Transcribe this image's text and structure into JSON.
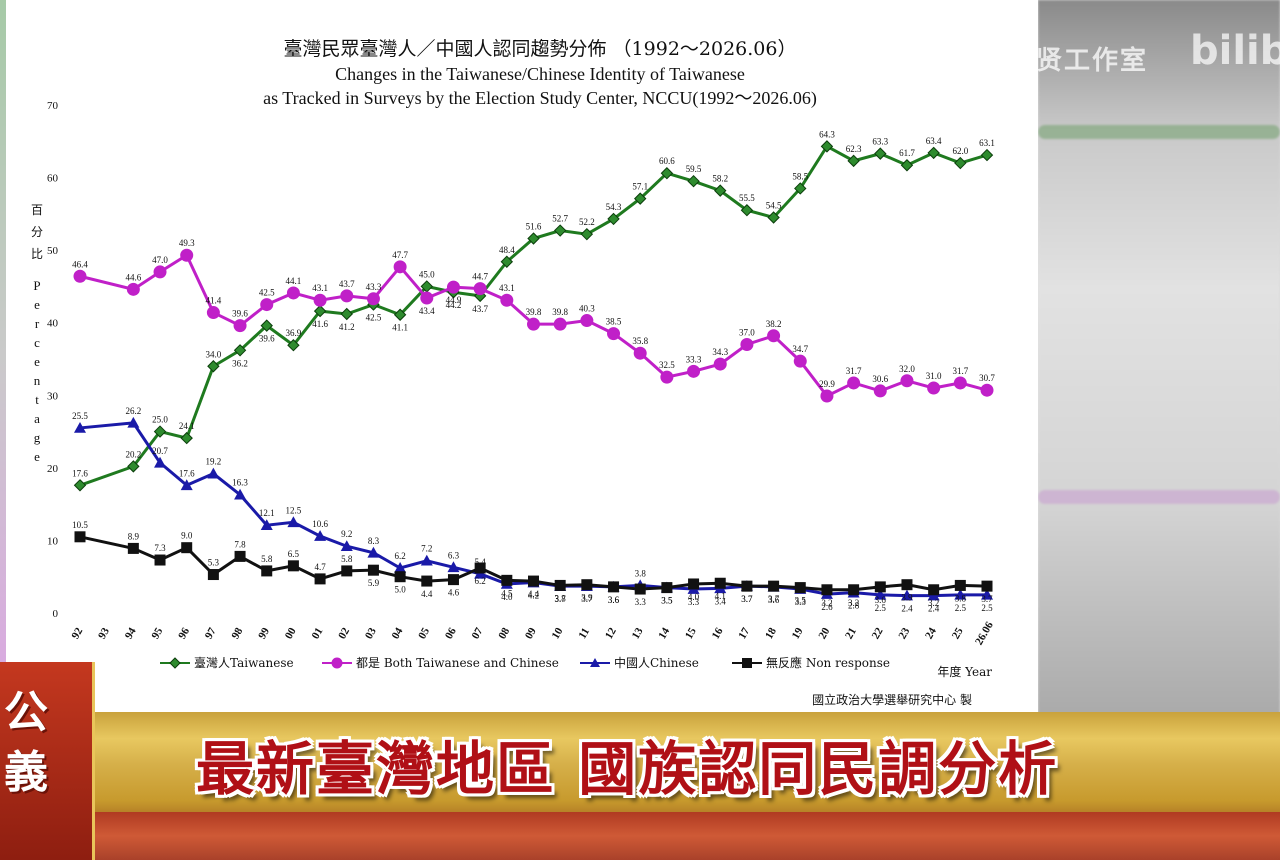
{
  "watermark": {
    "text": "蒂智贤工作室",
    "logo_text": "bilib"
  },
  "broadcast": {
    "headline": "最新臺灣地區  國族認同民調分析",
    "logo_top": "公",
    "logo_bottom": "義"
  },
  "chart_data": {
    "type": "line",
    "title": "臺灣民眾臺灣人／中國人認同趨勢分佈 （1992～2026.06）",
    "subtitle_line1": "Changes in the Taiwanese/Chinese Identity of Taiwanese",
    "subtitle_line2": "as Tracked in Surveys by the Election Study Center, NCCU(1992～2026.06)",
    "ylabel_zh": [
      "百",
      "分",
      "比"
    ],
    "ylabel_en": [
      "P",
      "e",
      "r",
      "c",
      "e",
      "n",
      "t",
      "a",
      "g",
      "e"
    ],
    "xlabel": "年度 Year",
    "source": "國立政治大學選舉研究中心 製",
    "ylim": [
      0,
      70
    ],
    "yticks": [
      "0",
      "10",
      "20",
      "30",
      "40",
      "50",
      "60",
      "70"
    ],
    "categories": [
      "92",
      "93",
      "94",
      "95",
      "96",
      "97",
      "98",
      "99",
      "00",
      "01",
      "02",
      "03",
      "04",
      "05",
      "06",
      "07",
      "08",
      "09",
      "10",
      "11",
      "12",
      "13",
      "14",
      "15",
      "16",
      "17",
      "18",
      "19",
      "20",
      "21",
      "22",
      "23",
      "24",
      "25",
      "26.06"
    ],
    "grid": false,
    "legend_position": "bottom",
    "series": [
      {
        "name": "臺灣人Taiwanese",
        "color": "#1f7a1f",
        "marker": "diamond",
        "points": [
          {
            "x": "92",
            "y": 17.6,
            "label": "17.6"
          },
          {
            "x": "94",
            "y": 20.2,
            "label": "20.2"
          },
          {
            "x": "95",
            "y": 25.0,
            "label": "25.0"
          },
          {
            "x": "96",
            "y": 24.1,
            "label": "24.1"
          },
          {
            "x": "97",
            "y": 34.0,
            "label": "34.0"
          },
          {
            "x": "98",
            "y": 36.2,
            "label": "36.2"
          },
          {
            "x": "99",
            "y": 39.6,
            "label": "39.6"
          },
          {
            "x": "00",
            "y": 36.9,
            "label": "36.9"
          },
          {
            "x": "01",
            "y": 41.6,
            "label": "41.6"
          },
          {
            "x": "02",
            "y": 41.2,
            "label": "41.2"
          },
          {
            "x": "03",
            "y": 42.5,
            "label": "42.5"
          },
          {
            "x": "04",
            "y": 41.1,
            "label": "41.1"
          },
          {
            "x": "05",
            "y": 45.0,
            "label": "45.0"
          },
          {
            "x": "06",
            "y": 44.2,
            "label": "44.2"
          },
          {
            "x": "07",
            "y": 43.7,
            "label": "43.7"
          },
          {
            "x": "08",
            "y": 48.4,
            "label": "48.4"
          },
          {
            "x": "09",
            "y": 51.6,
            "label": "51.6"
          },
          {
            "x": "10",
            "y": 52.7,
            "label": "52.7"
          },
          {
            "x": "11",
            "y": 52.2,
            "label": "52.2"
          },
          {
            "x": "12",
            "y": 54.3,
            "label": "54.3"
          },
          {
            "x": "13",
            "y": 57.1,
            "label": "57.1"
          },
          {
            "x": "14",
            "y": 60.6,
            "label": "60.6"
          },
          {
            "x": "15",
            "y": 59.5,
            "label": "59.5"
          },
          {
            "x": "16",
            "y": 58.2,
            "label": "58.2"
          },
          {
            "x": "17",
            "y": 55.5,
            "label": "55.5"
          },
          {
            "x": "18",
            "y": 54.5,
            "label": "54.5"
          },
          {
            "x": "19",
            "y": 58.5,
            "label": "58.5"
          },
          {
            "x": "20",
            "y": 64.3,
            "label": "64.3"
          },
          {
            "x": "21",
            "y": 62.3,
            "label": "62.3"
          },
          {
            "x": "22",
            "y": 63.3,
            "label": "63.3"
          },
          {
            "x": "23",
            "y": 61.7,
            "label": "61.7"
          },
          {
            "x": "24",
            "y": 63.4,
            "label": "63.4"
          },
          {
            "x": "25",
            "y": 62.0,
            "label": "62.0"
          },
          {
            "x": "26.06",
            "y": 63.1,
            "label": "63.1"
          }
        ]
      },
      {
        "name": "都是 Both Taiwanese and Chinese",
        "color": "#c020c8",
        "marker": "circle",
        "points": [
          {
            "x": "92",
            "y": 46.4,
            "label": "46.4"
          },
          {
            "x": "94",
            "y": 44.6,
            "label": "44.6"
          },
          {
            "x": "95",
            "y": 47.0,
            "label": "47.0"
          },
          {
            "x": "96",
            "y": 49.3,
            "label": "49.3"
          },
          {
            "x": "97",
            "y": 41.4,
            "label": "41.4"
          },
          {
            "x": "98",
            "y": 39.6,
            "label": "39.6"
          },
          {
            "x": "99",
            "y": 42.5,
            "label": "42.5"
          },
          {
            "x": "00",
            "y": 44.1,
            "label": "44.1"
          },
          {
            "x": "01",
            "y": 43.1,
            "label": "43.1"
          },
          {
            "x": "02",
            "y": 43.7,
            "label": "43.7"
          },
          {
            "x": "03",
            "y": 43.3,
            "label": "43.3"
          },
          {
            "x": "04",
            "y": 47.7,
            "label": "47.7"
          },
          {
            "x": "05",
            "y": 43.4,
            "label": "43.4"
          },
          {
            "x": "06",
            "y": 44.9,
            "label": "44.9"
          },
          {
            "x": "07",
            "y": 44.7,
            "label": "44.7"
          },
          {
            "x": "08",
            "y": 43.1,
            "label": "43.1"
          },
          {
            "x": "09",
            "y": 39.8,
            "label": "39.8"
          },
          {
            "x": "10",
            "y": 39.8,
            "label": "39.8"
          },
          {
            "x": "11",
            "y": 40.3,
            "label": "40.3"
          },
          {
            "x": "12",
            "y": 38.5,
            "label": "38.5"
          },
          {
            "x": "13",
            "y": 35.8,
            "label": "35.8"
          },
          {
            "x": "14",
            "y": 32.5,
            "label": "32.5"
          },
          {
            "x": "15",
            "y": 33.3,
            "label": "33.3"
          },
          {
            "x": "16",
            "y": 34.3,
            "label": "34.3"
          },
          {
            "x": "17",
            "y": 37.0,
            "label": "37.0"
          },
          {
            "x": "18",
            "y": 38.2,
            "label": "38.2"
          },
          {
            "x": "19",
            "y": 34.7,
            "label": "34.7"
          },
          {
            "x": "20",
            "y": 29.9,
            "label": "29.9"
          },
          {
            "x": "21",
            "y": 31.7,
            "label": "31.7"
          },
          {
            "x": "22",
            "y": 30.6,
            "label": "30.6"
          },
          {
            "x": "23",
            "y": 32.0,
            "label": "32.0"
          },
          {
            "x": "24",
            "y": 31.0,
            "label": "31.0"
          },
          {
            "x": "25",
            "y": 31.7,
            "label": "31.7"
          },
          {
            "x": "26.06",
            "y": 30.7,
            "label": "30.7"
          }
        ]
      },
      {
        "name": "中國人Chinese",
        "color": "#1a1aa8",
        "marker": "triangle",
        "points": [
          {
            "x": "92",
            "y": 25.5,
            "label": "25.5"
          },
          {
            "x": "94",
            "y": 26.2,
            "label": "26.2"
          },
          {
            "x": "95",
            "y": 20.7,
            "label": "20.7"
          },
          {
            "x": "96",
            "y": 17.6,
            "label": "17.6"
          },
          {
            "x": "97",
            "y": 19.2,
            "label": "19.2"
          },
          {
            "x": "98",
            "y": 16.3,
            "label": "16.3"
          },
          {
            "x": "99",
            "y": 12.1,
            "label": "12.1"
          },
          {
            "x": "00",
            "y": 12.5,
            "label": "12.5"
          },
          {
            "x": "01",
            "y": 10.6,
            "label": "10.6"
          },
          {
            "x": "02",
            "y": 9.2,
            "label": "9.2"
          },
          {
            "x": "03",
            "y": 8.3,
            "label": "8.3"
          },
          {
            "x": "04",
            "y": 6.2,
            "label": "6.2"
          },
          {
            "x": "05",
            "y": 7.2,
            "label": "7.2"
          },
          {
            "x": "06",
            "y": 6.3,
            "label": "6.3"
          },
          {
            "x": "07",
            "y": 5.4,
            "label": "5.4"
          },
          {
            "x": "08",
            "y": 4.0,
            "label": "4.0"
          },
          {
            "x": "09",
            "y": 4.2,
            "label": "4.2"
          },
          {
            "x": "10",
            "y": 3.7,
            "label": "3.7"
          },
          {
            "x": "11",
            "y": 3.7,
            "label": "3.7"
          },
          {
            "x": "12",
            "y": 3.6,
            "label": "3.6"
          },
          {
            "x": "13",
            "y": 3.8,
            "label": "3.8"
          },
          {
            "x": "14",
            "y": 3.5,
            "label": "3.5"
          },
          {
            "x": "15",
            "y": 3.3,
            "label": "3.3"
          },
          {
            "x": "16",
            "y": 3.4,
            "label": "3.4"
          },
          {
            "x": "17",
            "y": 3.7,
            "label": "3.7"
          },
          {
            "x": "18",
            "y": 3.6,
            "label": "3.6"
          },
          {
            "x": "19",
            "y": 3.3,
            "label": "3.3"
          },
          {
            "x": "20",
            "y": 2.6,
            "label": "2.6"
          },
          {
            "x": "21",
            "y": 2.8,
            "label": "2.8"
          },
          {
            "x": "22",
            "y": 2.5,
            "label": "2.5"
          },
          {
            "x": "23",
            "y": 2.4,
            "label": "2.4"
          },
          {
            "x": "24",
            "y": 2.4,
            "label": "2.4"
          },
          {
            "x": "25",
            "y": 2.5,
            "label": "2.5"
          },
          {
            "x": "26.06",
            "y": 2.5,
            "label": "2.5"
          }
        ]
      },
      {
        "name": "無反應 Non response",
        "color": "#111111",
        "marker": "square",
        "points": [
          {
            "x": "92",
            "y": 10.5,
            "label": "10.5"
          },
          {
            "x": "94",
            "y": 8.9,
            "label": "8.9"
          },
          {
            "x": "95",
            "y": 7.3,
            "label": "7.3"
          },
          {
            "x": "96",
            "y": 9.0,
            "label": "9.0"
          },
          {
            "x": "97",
            "y": 5.3,
            "label": "5.3"
          },
          {
            "x": "98",
            "y": 7.8,
            "label": "7.8"
          },
          {
            "x": "99",
            "y": 5.8,
            "label": "5.8"
          },
          {
            "x": "00",
            "y": 6.5,
            "label": "6.5"
          },
          {
            "x": "01",
            "y": 4.7,
            "label": "4.7"
          },
          {
            "x": "02",
            "y": 5.8,
            "label": "5.8"
          },
          {
            "x": "03",
            "y": 5.9,
            "label": "5.9"
          },
          {
            "x": "04",
            "y": 5.0,
            "label": "5.0"
          },
          {
            "x": "05",
            "y": 4.4,
            "label": "4.4"
          },
          {
            "x": "06",
            "y": 4.6,
            "label": "4.6"
          },
          {
            "x": "07",
            "y": 6.2,
            "label": "6.2"
          },
          {
            "x": "08",
            "y": 4.5,
            "label": "4.5"
          },
          {
            "x": "09",
            "y": 4.4,
            "label": "4.4"
          },
          {
            "x": "10",
            "y": 3.8,
            "label": "3.8"
          },
          {
            "x": "11",
            "y": 3.9,
            "label": "3.9"
          },
          {
            "x": "12",
            "y": 3.6,
            "label": "3.6"
          },
          {
            "x": "13",
            "y": 3.3,
            "label": "3.3"
          },
          {
            "x": "14",
            "y": 3.5,
            "label": "3.5"
          },
          {
            "x": "15",
            "y": 4.0,
            "label": "4.0"
          },
          {
            "x": "16",
            "y": 4.1,
            "label": "4.1"
          },
          {
            "x": "17",
            "y": 3.7,
            "label": "3.7"
          },
          {
            "x": "18",
            "y": 3.7,
            "label": "3.7"
          },
          {
            "x": "19",
            "y": 3.5,
            "label": "3.5"
          },
          {
            "x": "20",
            "y": 3.2,
            "label": "3.2"
          },
          {
            "x": "21",
            "y": 3.2,
            "label": "3.2"
          },
          {
            "x": "22",
            "y": 3.6,
            "label": "3.6"
          },
          {
            "x": "23",
            "y": 3.9,
            "label": "3.9"
          },
          {
            "x": "24",
            "y": 3.2,
            "label": "3.2"
          },
          {
            "x": "25",
            "y": 3.8,
            "label": "3.8"
          },
          {
            "x": "26.06",
            "y": 3.7,
            "label": "3.7"
          }
        ]
      }
    ]
  }
}
